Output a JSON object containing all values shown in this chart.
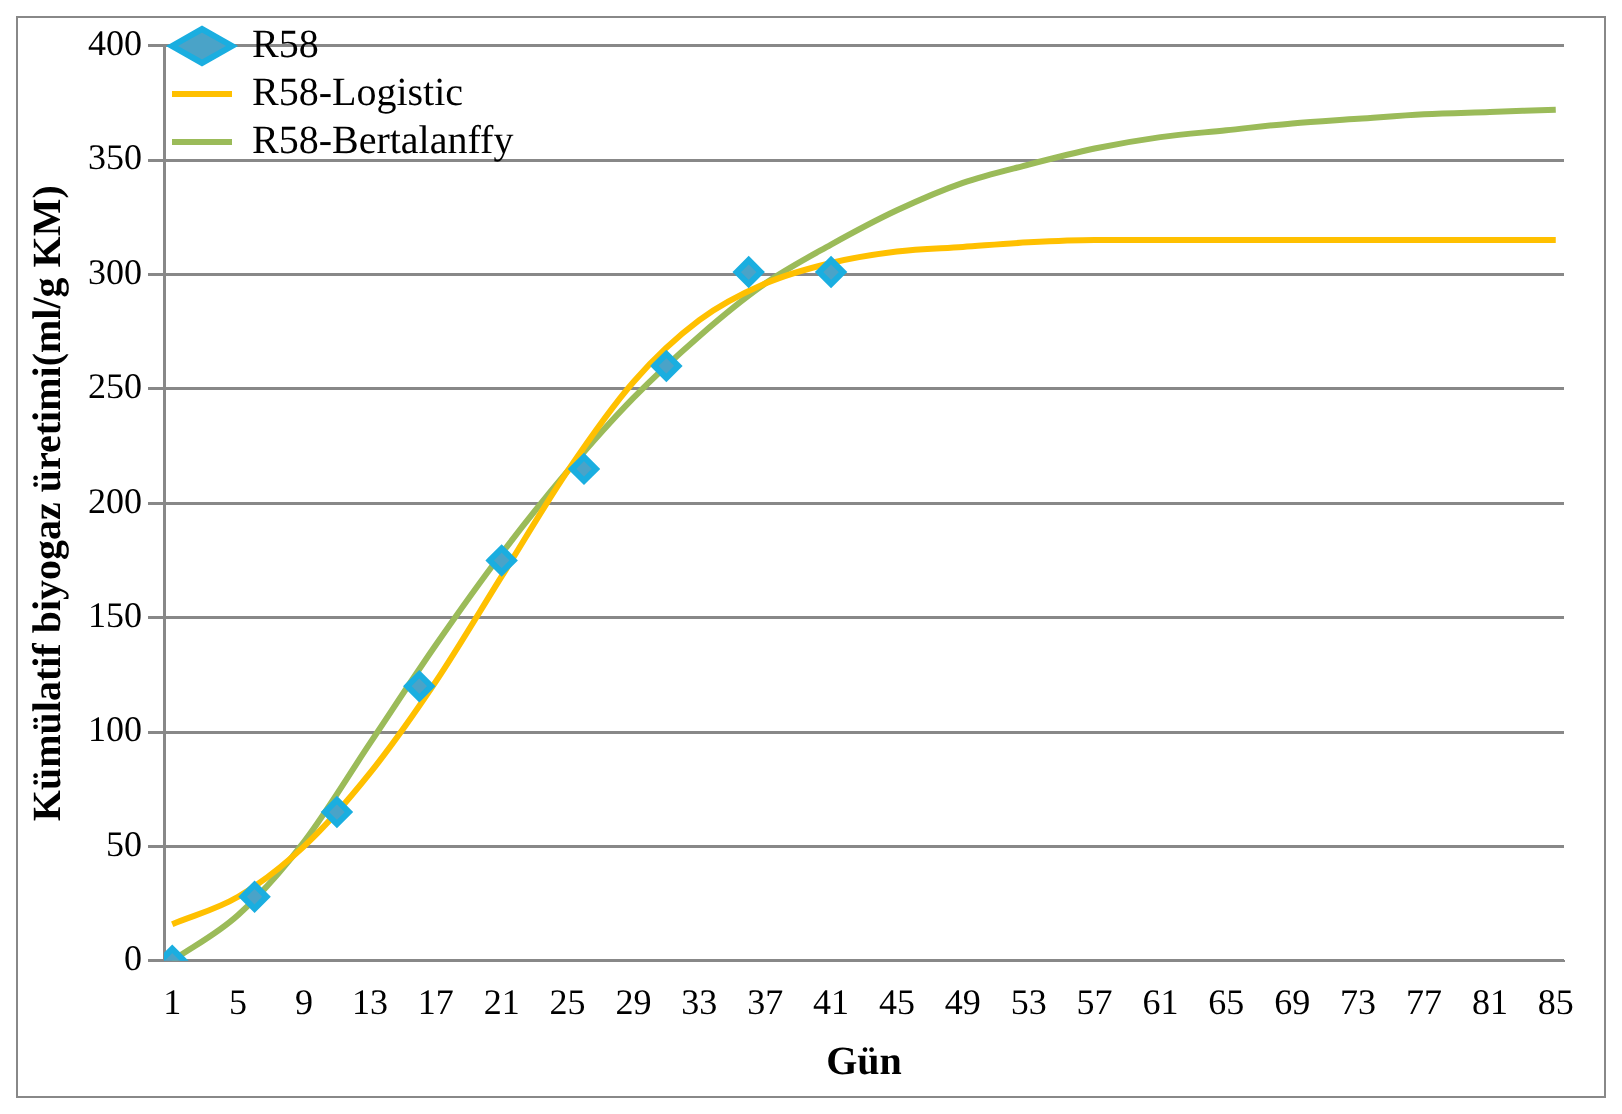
{
  "chart_data": {
    "type": "line",
    "xlabel": "Gün",
    "ylabel": "Kümülatif biyogaz üretimi(ml/g KM)",
    "xlim": [
      0.5,
      85.5
    ],
    "xticks": [
      1,
      5,
      9,
      13,
      17,
      21,
      25,
      29,
      33,
      37,
      41,
      45,
      49,
      53,
      57,
      61,
      65,
      69,
      73,
      77,
      81,
      85
    ],
    "ylim": [
      0,
      400
    ],
    "yticks": [
      0,
      50,
      100,
      150,
      200,
      250,
      300,
      350,
      400
    ],
    "grid": "y",
    "legend": "top left",
    "series": [
      {
        "name": "R58",
        "type": "scatter",
        "marker": "diamond",
        "color": "#1aaee0",
        "x": [
          1,
          6,
          11,
          16,
          21,
          26,
          31,
          36,
          41
        ],
        "values": [
          0,
          28,
          65,
          120,
          175,
          215,
          260,
          301,
          301
        ]
      },
      {
        "name": "R58-Logistic",
        "type": "line",
        "marker": "none",
        "color": "#ffc000",
        "x": [
          1,
          5,
          9,
          13,
          17,
          21,
          25,
          29,
          33,
          37,
          41,
          45,
          49,
          53,
          57,
          61,
          65,
          69,
          73,
          77,
          81,
          85
        ],
        "values": [
          16,
          28,
          50,
          82,
          122,
          168,
          214,
          253,
          280,
          296,
          305,
          310,
          312,
          314,
          315,
          315,
          315,
          315,
          315,
          315,
          315,
          315
        ]
      },
      {
        "name": "R58-Bertalanffy",
        "type": "line",
        "marker": "none",
        "color": "#9bbb59",
        "x": [
          1,
          5,
          9,
          13,
          17,
          21,
          25,
          29,
          33,
          37,
          41,
          45,
          49,
          53,
          57,
          61,
          65,
          69,
          73,
          77,
          81,
          85
        ],
        "values": [
          0,
          20,
          52,
          95,
          138,
          178,
          214,
          246,
          273,
          296,
          313,
          328,
          340,
          348,
          355,
          360,
          363,
          366,
          368,
          370,
          371,
          372
        ]
      }
    ]
  }
}
